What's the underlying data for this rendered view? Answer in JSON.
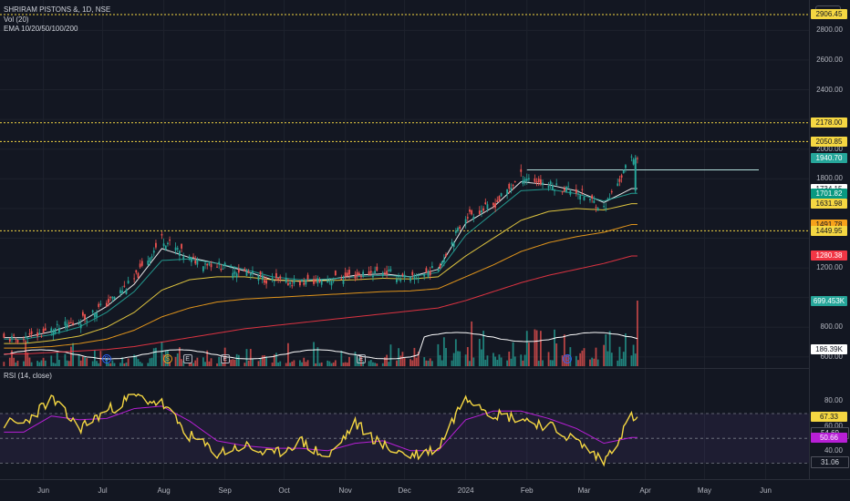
{
  "header": {
    "symbol_line": "SHRIRAM PISTONS &, 1D, NSE",
    "vol_line": "Vol (20)",
    "ema_line": "EMA 10/20/50/100/200",
    "currency_button": "INR",
    "rsi_line": "RSI (14, close)"
  },
  "price_axis": {
    "labels": [
      "2800.00",
      "2600.00",
      "2400.00",
      "2000.00",
      "1800.00",
      "1200.00",
      "800.00",
      "600.00"
    ],
    "badges": [
      {
        "text": "2906.45",
        "bg": "#f5d742",
        "fg": "#131722"
      },
      {
        "text": "2178.00",
        "bg": "#f5d742",
        "fg": "#131722"
      },
      {
        "text": "2050.85",
        "bg": "#f5d742",
        "fg": "#131722"
      },
      {
        "text": "1940.70",
        "bg": "#26a69a",
        "fg": "#ffffff"
      },
      {
        "text": "1734.15",
        "bg": "#ffffff",
        "fg": "#131722"
      },
      {
        "text": "1701.82",
        "bg": "#089981",
        "fg": "#ffffff"
      },
      {
        "text": "1631.98",
        "bg": "#f5d742",
        "fg": "#131722"
      },
      {
        "text": "1491.78",
        "bg": "#f7a21b",
        "fg": "#131722"
      },
      {
        "text": "1449.95",
        "bg": "#f5d742",
        "fg": "#131722"
      },
      {
        "text": "1280.38",
        "bg": "#f23645",
        "fg": "#ffffff"
      },
      {
        "text": "699.453K",
        "bg": "#26a69a",
        "fg": "#ffffff"
      },
      {
        "text": "186.39K",
        "bg": "#ffffff",
        "fg": "#131722"
      }
    ]
  },
  "rsi_axis": {
    "labels": [
      "80.00",
      "60.00",
      "40.00"
    ],
    "badges": [
      {
        "text": "67.33",
        "bg": "#f5d742",
        "fg": "#131722"
      },
      {
        "text": "54.69",
        "bg": "#131722",
        "fg": "#d1d4dc"
      },
      {
        "text": "50.66",
        "bg": "#b71fd6",
        "fg": "#ffffff"
      },
      {
        "text": "31.06",
        "bg": "#131722",
        "fg": "#d1d4dc"
      }
    ]
  },
  "time_axis": [
    "Jun",
    "Jul",
    "Aug",
    "Sep",
    "Oct",
    "Nov",
    "Dec",
    "2024",
    "Feb",
    "Mar",
    "Apr",
    "May",
    "Jun"
  ],
  "event_markers": [
    {
      "label": "D",
      "kind": "dividend"
    },
    {
      "label": "S",
      "kind": "split"
    },
    {
      "label": "E",
      "kind": "earnings"
    },
    {
      "label": "E",
      "kind": "earnings"
    },
    {
      "label": "E",
      "kind": "earnings"
    },
    {
      "label": "D",
      "kind": "dividend"
    }
  ],
  "colors": {
    "background": "#131722",
    "up": "#26a69a",
    "down": "#ef5350",
    "ema10": "#ffffff",
    "ema20": "#26a69a",
    "ema50": "#f5d742",
    "ema100": "#f7a21b",
    "ema200": "#f23645",
    "rsi": "#f5d742",
    "rsi_ma": "#b71fd6",
    "level_lines": "#f5d742"
  },
  "chart_data": [
    {
      "type": "candlestick",
      "title": "SHRIRAM PISTONS &, 1D, NSE",
      "ylim": [
        550,
        2980
      ],
      "horizontal_levels": [
        2906.45,
        2178.0,
        2050.85,
        1449.95
      ],
      "resistance_level": 1860,
      "last_price": 1940.7,
      "x": [
        "2023-05-22",
        "2023-06-05",
        "2023-06-19",
        "2023-07-03",
        "2023-07-17",
        "2023-07-31",
        "2023-08-14",
        "2023-08-28",
        "2023-09-11",
        "2023-09-25",
        "2023-10-09",
        "2023-10-23",
        "2023-11-06",
        "2023-11-20",
        "2023-12-04",
        "2023-12-18",
        "2024-01-01",
        "2024-01-15",
        "2024-01-29",
        "2024-02-12",
        "2024-02-26",
        "2024-03-11",
        "2024-03-25"
      ],
      "close": [
        720,
        780,
        840,
        960,
        1120,
        1400,
        1260,
        1220,
        1170,
        1110,
        1100,
        1120,
        1150,
        1180,
        1120,
        1200,
        1550,
        1620,
        1820,
        1760,
        1720,
        1600,
        1940
      ],
      "series": [
        {
          "name": "EMA 10",
          "values": [
            730,
            770,
            830,
            940,
            1090,
            1330,
            1270,
            1230,
            1180,
            1120,
            1110,
            1120,
            1150,
            1160,
            1140,
            1190,
            1500,
            1610,
            1780,
            1760,
            1720,
            1640,
            1734
          ]
        },
        {
          "name": "EMA 20",
          "values": [
            720,
            750,
            800,
            900,
            1040,
            1250,
            1260,
            1230,
            1190,
            1140,
            1120,
            1125,
            1140,
            1150,
            1140,
            1170,
            1420,
            1570,
            1720,
            1730,
            1700,
            1650,
            1702
          ]
        },
        {
          "name": "EMA 50",
          "values": [
            690,
            710,
            740,
            800,
            900,
            1050,
            1120,
            1140,
            1140,
            1120,
            1110,
            1115,
            1120,
            1130,
            1125,
            1140,
            1280,
            1400,
            1520,
            1580,
            1600,
            1590,
            1632
          ]
        },
        {
          "name": "EMA 100",
          "values": [
            660,
            670,
            690,
            720,
            780,
            870,
            930,
            970,
            990,
            1000,
            1010,
            1020,
            1030,
            1040,
            1045,
            1060,
            1140,
            1220,
            1310,
            1370,
            1410,
            1440,
            1492
          ]
        },
        {
          "name": "EMA 200",
          "values": [
            620,
            630,
            640,
            650,
            670,
            700,
            730,
            760,
            790,
            810,
            830,
            850,
            870,
            890,
            910,
            930,
            980,
            1040,
            1100,
            1150,
            1190,
            1230,
            1280
          ]
        }
      ],
      "volume": {
        "name": "Vol (20)",
        "last": "699.453K",
        "ma_last": "186.39K"
      }
    },
    {
      "type": "line",
      "title": "RSI (14, close)",
      "ylim": [
        20,
        95
      ],
      "bands": [
        70,
        50,
        30
      ],
      "x": [
        "2023-05-22",
        "2023-06-05",
        "2023-06-19",
        "2023-07-03",
        "2023-07-17",
        "2023-07-31",
        "2023-08-14",
        "2023-08-28",
        "2023-09-11",
        "2023-09-25",
        "2023-10-09",
        "2023-10-23",
        "2023-11-06",
        "2023-11-20",
        "2023-12-04",
        "2023-12-18",
        "2024-01-01",
        "2024-01-15",
        "2024-01-29",
        "2024-02-12",
        "2024-02-26",
        "2024-03-11",
        "2024-03-25"
      ],
      "series": [
        {
          "name": "RSI",
          "values": [
            62,
            82,
            58,
            72,
            84,
            78,
            52,
            38,
            44,
            36,
            48,
            34,
            62,
            44,
            36,
            42,
            85,
            70,
            66,
            60,
            48,
            31,
            67.33
          ]
        },
        {
          "name": "RSI-based MA",
          "values": [
            55,
            68,
            65,
            66,
            74,
            76,
            64,
            48,
            44,
            42,
            42,
            40,
            46,
            48,
            40,
            40,
            65,
            72,
            72,
            66,
            58,
            46,
            50.66
          ]
        }
      ]
    }
  ]
}
